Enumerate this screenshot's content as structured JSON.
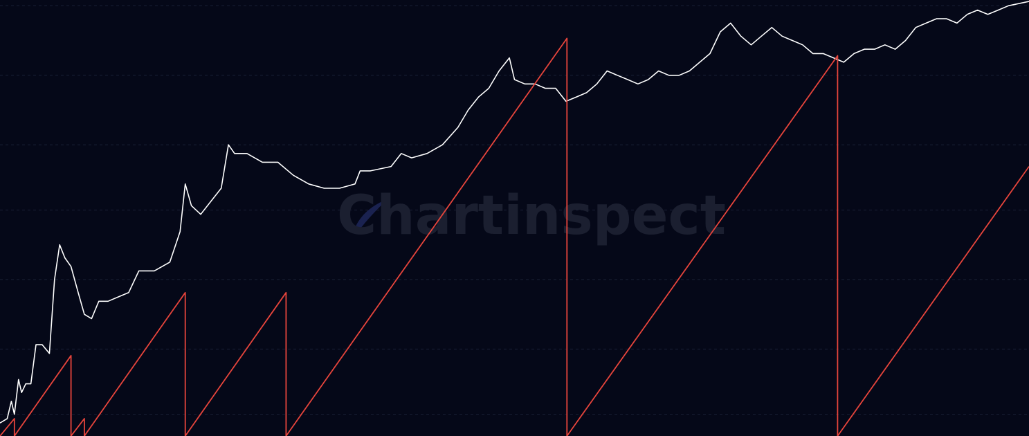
{
  "watermark": {
    "text": "Chartinspect"
  },
  "colors": {
    "background": "#050818",
    "grid": "#1a2036",
    "price_line": "#ffffff",
    "cycle_line": "#e8453c",
    "watermark": "#1b1f30",
    "watermark_icon": "#1a2250"
  },
  "chart_data": {
    "type": "line",
    "xlim": [
      0,
      100
    ],
    "ylim": [
      0,
      100
    ],
    "grid": {
      "horizontal": true,
      "vertical": false,
      "style": "dashed"
    },
    "gridlines_y": [
      5,
      20,
      36,
      52,
      67,
      83,
      99
    ],
    "series": [
      {
        "key": "price",
        "color": "#ffffff",
        "points": [
          [
            0,
            3
          ],
          [
            0.7,
            4
          ],
          [
            1.1,
            8
          ],
          [
            1.4,
            5
          ],
          [
            1.8,
            13
          ],
          [
            2.1,
            10
          ],
          [
            2.5,
            12
          ],
          [
            3.0,
            12
          ],
          [
            3.5,
            21
          ],
          [
            4.1,
            21
          ],
          [
            4.8,
            19
          ],
          [
            5.3,
            36
          ],
          [
            5.8,
            44
          ],
          [
            6.3,
            41
          ],
          [
            6.9,
            39
          ],
          [
            7.6,
            33
          ],
          [
            8.2,
            28
          ],
          [
            8.9,
            27
          ],
          [
            9.6,
            31
          ],
          [
            10.5,
            31
          ],
          [
            11.5,
            32
          ],
          [
            12.5,
            33
          ],
          [
            13.5,
            38
          ],
          [
            15.0,
            38
          ],
          [
            16.5,
            40
          ],
          [
            17.5,
            47
          ],
          [
            18.0,
            58
          ],
          [
            18.6,
            53
          ],
          [
            19.5,
            51
          ],
          [
            20.5,
            54
          ],
          [
            21.5,
            57
          ],
          [
            22.2,
            67
          ],
          [
            22.8,
            65
          ],
          [
            24,
            65
          ],
          [
            25.5,
            63
          ],
          [
            27,
            63
          ],
          [
            28.5,
            60
          ],
          [
            30,
            58
          ],
          [
            31.5,
            57
          ],
          [
            33,
            57
          ],
          [
            34.5,
            58
          ],
          [
            35,
            61
          ],
          [
            36,
            61
          ],
          [
            38,
            62
          ],
          [
            39,
            65
          ],
          [
            40,
            64
          ],
          [
            41.5,
            65
          ],
          [
            43,
            67
          ],
          [
            44.5,
            71
          ],
          [
            45.5,
            75
          ],
          [
            46.5,
            78
          ],
          [
            47.5,
            80
          ],
          [
            48.5,
            84
          ],
          [
            49.5,
            87
          ],
          [
            50,
            82
          ],
          [
            51,
            81
          ],
          [
            52,
            81
          ],
          [
            53,
            80
          ],
          [
            54,
            80
          ],
          [
            55,
            77
          ],
          [
            56,
            78
          ],
          [
            57,
            79
          ],
          [
            58,
            81
          ],
          [
            59,
            84
          ],
          [
            60,
            83
          ],
          [
            61,
            82
          ],
          [
            62,
            81
          ],
          [
            63,
            82
          ],
          [
            64,
            84
          ],
          [
            65,
            83
          ],
          [
            66,
            83
          ],
          [
            67,
            84
          ],
          [
            68,
            86
          ],
          [
            69,
            88
          ],
          [
            70,
            93
          ],
          [
            71,
            95
          ],
          [
            72,
            92
          ],
          [
            73,
            90
          ],
          [
            74,
            92
          ],
          [
            75,
            94
          ],
          [
            76,
            92
          ],
          [
            77,
            91
          ],
          [
            78,
            90
          ],
          [
            79,
            88
          ],
          [
            80,
            88
          ],
          [
            81,
            87
          ],
          [
            82,
            86
          ],
          [
            83,
            88
          ],
          [
            84,
            89
          ],
          [
            85,
            89
          ],
          [
            86,
            90
          ],
          [
            87,
            89
          ],
          [
            88,
            91
          ],
          [
            89,
            94
          ],
          [
            90,
            95
          ],
          [
            91,
            96
          ],
          [
            92,
            96
          ],
          [
            93,
            95
          ],
          [
            94,
            97
          ],
          [
            95,
            98
          ],
          [
            96,
            97
          ],
          [
            97,
            98
          ],
          [
            98,
            99
          ],
          [
            100,
            100
          ]
        ]
      },
      {
        "key": "cycle",
        "color": "#e8453c",
        "points": [
          [
            0,
            0
          ],
          [
            1.4,
            4
          ],
          [
            1.4,
            0
          ],
          [
            6.9,
            18.5
          ],
          [
            6.9,
            0
          ],
          [
            8.2,
            4
          ],
          [
            8.2,
            0
          ],
          [
            18.0,
            33
          ],
          [
            18.0,
            0
          ],
          [
            27.8,
            33
          ],
          [
            27.8,
            0
          ],
          [
            55.1,
            91.5
          ],
          [
            55.1,
            0
          ],
          [
            81.4,
            87.5
          ],
          [
            81.4,
            0
          ],
          [
            100,
            62
          ]
        ]
      }
    ]
  }
}
